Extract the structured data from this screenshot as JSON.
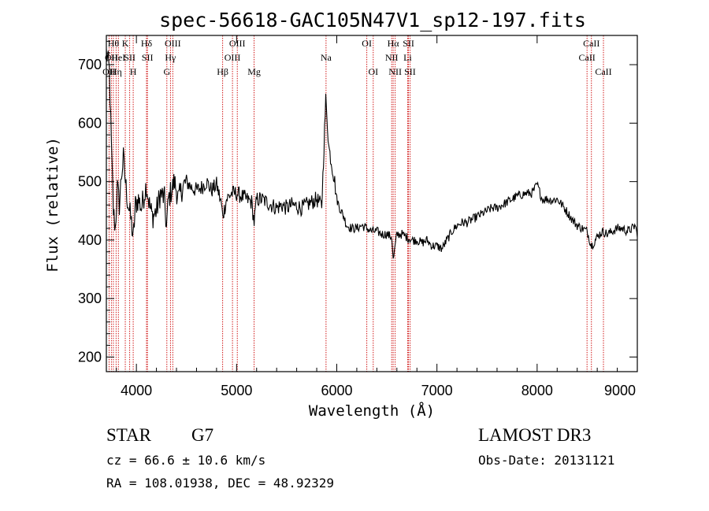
{
  "chart_data": {
    "type": "line",
    "title": "spec-56618-GAC105N47V1_sp12-197.fits",
    "xlabel": "Wavelength (Å)",
    "ylabel": "Flux (relative)",
    "xlim": [
      3700,
      9000
    ],
    "ylim": [
      175,
      750
    ],
    "x_ticks": [
      4000,
      5000,
      6000,
      7000,
      8000,
      9000
    ],
    "y_ticks": [
      200,
      300,
      400,
      500,
      600,
      700
    ],
    "grid": false,
    "line_color": "#000000",
    "marker_color": "#cc0000",
    "spectrum": {
      "x": [
        3700,
        3730,
        3750,
        3770,
        3790,
        3810,
        3830,
        3850,
        3870,
        3890,
        3910,
        3930,
        3950,
        3968,
        3990,
        4020,
        4050,
        4080,
        4100,
        4130,
        4160,
        4200,
        4240,
        4280,
        4300,
        4320,
        4340,
        4380,
        4420,
        4460,
        4500,
        4550,
        4600,
        4650,
        4700,
        4750,
        4800,
        4850,
        4861,
        4900,
        4950,
        5000,
        5050,
        5100,
        5150,
        5175,
        5200,
        5250,
        5300,
        5350,
        5400,
        5450,
        5500,
        5550,
        5600,
        5650,
        5700,
        5750,
        5800,
        5850,
        5890,
        5900,
        5920,
        5950,
        5980,
        6000,
        6030,
        6070,
        6100,
        6150,
        6200,
        6250,
        6300,
        6350,
        6400,
        6450,
        6500,
        6550,
        6563,
        6600,
        6650,
        6700,
        6750,
        6800,
        6850,
        6900,
        6950,
        7000,
        7050,
        7100,
        7150,
        7200,
        7250,
        7300,
        7350,
        7400,
        7450,
        7500,
        7550,
        7600,
        7650,
        7700,
        7750,
        7800,
        7850,
        7900,
        7950,
        8000,
        8050,
        8100,
        8150,
        8200,
        8250,
        8300,
        8350,
        8400,
        8450,
        8500,
        8542,
        8580,
        8620,
        8662,
        8700,
        8750,
        8800,
        8850,
        8900,
        8950,
        8980,
        9000
      ],
      "y": [
        720,
        690,
        560,
        450,
        420,
        490,
        460,
        510,
        540,
        500,
        470,
        450,
        430,
        400,
        460,
        470,
        455,
        480,
        495,
        460,
        440,
        450,
        480,
        470,
        420,
        470,
        480,
        500,
        470,
        490,
        500,
        490,
        485,
        490,
        500,
        485,
        495,
        460,
        440,
        470,
        480,
        480,
        475,
        470,
        465,
        430,
        470,
        470,
        465,
        460,
        455,
        460,
        455,
        460,
        458,
        455,
        460,
        465,
        470,
        458,
        640,
        620,
        560,
        530,
        500,
        470,
        455,
        440,
        425,
        420,
        420,
        425,
        420,
        415,
        415,
        410,
        410,
        405,
        365,
        410,
        410,
        405,
        400,
        400,
        395,
        400,
        390,
        390,
        385,
        400,
        415,
        425,
        430,
        430,
        435,
        440,
        445,
        450,
        455,
        455,
        460,
        465,
        470,
        475,
        478,
        480,
        480,
        495,
        470,
        470,
        468,
        470,
        460,
        448,
        435,
        425,
        420,
        415,
        390,
        400,
        410,
        415,
        410,
        415,
        420,
        420,
        415,
        420,
        425,
        405
      ]
    },
    "lines": [
      {
        "wl": 3727,
        "label": "OII",
        "row": 2
      },
      {
        "wl": 3750,
        "label": "OII",
        "row": 1
      },
      {
        "wl": 3770,
        "label": "Hθ",
        "row": 0
      },
      {
        "wl": 3797,
        "label": "Hη",
        "row": 2
      },
      {
        "wl": 3820,
        "label": "HeI",
        "row": 1
      },
      {
        "wl": 3889,
        "label": "K",
        "row": 0
      },
      {
        "wl": 3933,
        "label": "SII",
        "row": 1
      },
      {
        "wl": 3968,
        "label": "H",
        "row": 2
      },
      {
        "wl": 4101,
        "label": "Hδ",
        "row": 0
      },
      {
        "wl": 4110,
        "label": "SII",
        "row": 1
      },
      {
        "wl": 4304,
        "label": "G",
        "row": 2
      },
      {
        "wl": 4340,
        "label": "Hγ",
        "row": 1
      },
      {
        "wl": 4363,
        "label": "OIII",
        "row": 0
      },
      {
        "wl": 4861,
        "label": "Hβ",
        "row": 2
      },
      {
        "wl": 4959,
        "label": "OIII",
        "row": 1
      },
      {
        "wl": 5007,
        "label": "OIII",
        "row": 0
      },
      {
        "wl": 5175,
        "label": "Mg",
        "row": 2
      },
      {
        "wl": 5893,
        "label": "Na",
        "row": 1
      },
      {
        "wl": 6300,
        "label": "OI",
        "row": 0
      },
      {
        "wl": 6364,
        "label": "OI",
        "row": 2
      },
      {
        "wl": 6548,
        "label": "NII",
        "row": 1
      },
      {
        "wl": 6563,
        "label": "Hα",
        "row": 0
      },
      {
        "wl": 6583,
        "label": "NII",
        "row": 2
      },
      {
        "wl": 6707,
        "label": "Li",
        "row": 1
      },
      {
        "wl": 6716,
        "label": "SII",
        "row": 0
      },
      {
        "wl": 6731,
        "label": "SII",
        "row": 2
      },
      {
        "wl": 8498,
        "label": "CaII",
        "row": 1
      },
      {
        "wl": 8542,
        "label": "CaII",
        "row": 0
      },
      {
        "wl": 8662,
        "label": "CaII",
        "row": 2
      }
    ]
  },
  "footer": {
    "class": "STAR",
    "subclass": "G7",
    "survey": "LAMOST DR3",
    "cz": "cz = 66.6 ± 10.6 km/s",
    "obs_date": "Obs-Date: 20131121",
    "coords": "RA = 108.01938, DEC =  48.92329"
  }
}
